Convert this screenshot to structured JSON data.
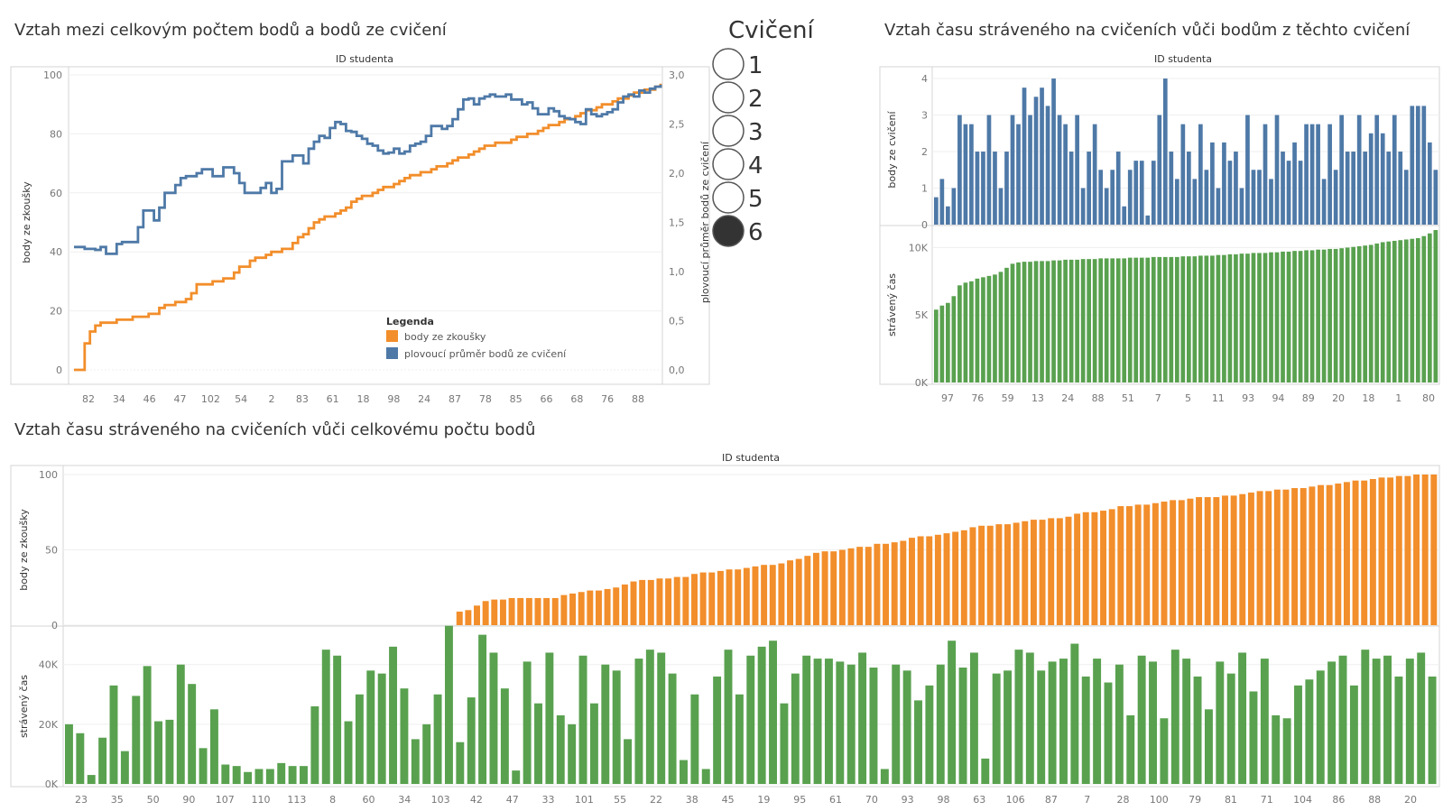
{
  "filter": {
    "title": "Cvičení",
    "options": [
      "1",
      "2",
      "3",
      "4",
      "5",
      "6"
    ],
    "selected": "6"
  },
  "colors": {
    "orange": "#f28e2b",
    "blue": "#4e79a7",
    "green": "#59a14f"
  },
  "chart_data": [
    {
      "type": "line",
      "title": "Vztah mezi celkovým počtem bodů a bodů ze cvičení",
      "header": "ID studenta",
      "ylabel": "body ze zkoušky",
      "y2label": "plovoucí průměr bodů ze cvičení",
      "ylim": [
        0,
        100
      ],
      "y2lim": [
        0,
        3.0
      ],
      "yticks": [
        "0",
        "20",
        "40",
        "60",
        "80",
        "100"
      ],
      "y2ticks": [
        "0,0",
        "0,5",
        "1,0",
        "1,5",
        "2,0",
        "2,5",
        "3,0"
      ],
      "xtick_labels": [
        "82",
        "34",
        "46",
        "47",
        "102",
        "54",
        "2",
        "83",
        "61",
        "18",
        "98",
        "24",
        "87",
        "78",
        "85",
        "66",
        "68",
        "76",
        "88"
      ],
      "legend": {
        "title": "Legenda",
        "entries": [
          "body ze zkoušky",
          "plovoucí průměr bodů ze cvičení"
        ],
        "position": "bottom-center"
      },
      "series": [
        {
          "name": "body ze zkoušky",
          "color": "#f28e2b",
          "axis": "left",
          "values": [
            0,
            0,
            9,
            13,
            15,
            16,
            16,
            16,
            17,
            17,
            17,
            18,
            18,
            18,
            19,
            19,
            21,
            22,
            22,
            23,
            23,
            24,
            26,
            29,
            29,
            29,
            30,
            30,
            31,
            31,
            33,
            35,
            35,
            37,
            38,
            38,
            39,
            40,
            40,
            41,
            41,
            43,
            45,
            46,
            48,
            50,
            51,
            52,
            52,
            53,
            54,
            55,
            57,
            58,
            59,
            59,
            60,
            61,
            62,
            62,
            63,
            64,
            65,
            66,
            66,
            67,
            67,
            68,
            69,
            69,
            70,
            71,
            72,
            72,
            73,
            74,
            75,
            76,
            76,
            77,
            77,
            77,
            78,
            79,
            79,
            80,
            80,
            81,
            82,
            83,
            83,
            84,
            85,
            85,
            86,
            87,
            88,
            88,
            89,
            90,
            90,
            91,
            92,
            92,
            93,
            94,
            94,
            95,
            95,
            96,
            97
          ]
        },
        {
          "name": "plovoucí průměr bodů ze cvičení",
          "color": "#4e79a7",
          "axis": "right",
          "values": [
            1.25,
            1.25,
            1.23,
            1.23,
            1.22,
            1.25,
            1.18,
            1.18,
            1.28,
            1.3,
            1.3,
            1.3,
            1.45,
            1.62,
            1.62,
            1.52,
            1.65,
            1.8,
            1.8,
            1.88,
            1.95,
            1.97,
            1.97,
            2.0,
            2.04,
            2.04,
            1.97,
            1.97,
            2.06,
            2.06,
            2.0,
            1.9,
            1.8,
            1.8,
            1.8,
            1.85,
            1.9,
            1.8,
            1.84,
            2.12,
            2.12,
            2.18,
            2.18,
            2.1,
            2.25,
            2.32,
            2.38,
            2.36,
            2.46,
            2.52,
            2.5,
            2.43,
            2.42,
            2.38,
            2.35,
            2.3,
            2.28,
            2.23,
            2.2,
            2.21,
            2.25,
            2.2,
            2.22,
            2.28,
            2.3,
            2.32,
            2.38,
            2.48,
            2.48,
            2.45,
            2.48,
            2.55,
            2.65,
            2.75,
            2.76,
            2.7,
            2.76,
            2.78,
            2.8,
            2.78,
            2.78,
            2.8,
            2.75,
            2.75,
            2.7,
            2.72,
            2.66,
            2.6,
            2.6,
            2.66,
            2.63,
            2.58,
            2.56,
            2.55,
            2.52,
            2.5,
            2.65,
            2.6,
            2.58,
            2.6,
            2.62,
            2.65,
            2.72,
            2.78,
            2.8,
            2.78,
            2.84,
            2.82,
            2.86,
            2.88,
            2.9
          ]
        }
      ]
    },
    {
      "type": "bar",
      "title": "Vztah času stráveného na cvičeních vůči bodům z těchto cvičení",
      "header": "ID studenta",
      "xtick_labels": [
        "97",
        "76",
        "59",
        "13",
        "24",
        "88",
        "51",
        "7",
        "5",
        "11",
        "93",
        "94",
        "89",
        "20",
        "18",
        "1",
        "80"
      ],
      "panels": [
        {
          "ylabel": "body ze cvičení",
          "ylim": [
            0,
            4.1
          ],
          "yticks": [
            "0",
            "1",
            "2",
            "3",
            "4"
          ],
          "color": "#4e79a7",
          "values": [
            0.75,
            1.25,
            0.5,
            1.0,
            3.0,
            2.75,
            2.75,
            2.0,
            2.0,
            3.0,
            2.0,
            1.0,
            2.0,
            3.0,
            2.75,
            3.75,
            3.0,
            3.5,
            3.75,
            3.25,
            4.0,
            3.0,
            2.75,
            2.0,
            3.0,
            1.0,
            2.0,
            2.75,
            1.5,
            1.0,
            1.5,
            2.0,
            0.5,
            1.5,
            1.75,
            1.75,
            0.25,
            1.75,
            3.0,
            4.0,
            2.0,
            1.25,
            2.75,
            2.0,
            1.25,
            2.75,
            1.5,
            2.25,
            1.0,
            2.25,
            1.75,
            2.0,
            1.0,
            3.0,
            1.5,
            1.5,
            2.75,
            1.25,
            3.0,
            2.0,
            1.75,
            2.25,
            1.75,
            2.75,
            2.75,
            2.75,
            1.25,
            2.75,
            1.5,
            3.0,
            2.0,
            2.0,
            3.0,
            2.0,
            2.5,
            3.0,
            2.5,
            2.0,
            3.0,
            2.0,
            1.5,
            3.25,
            3.25,
            3.25,
            2.25,
            1.5
          ]
        },
        {
          "ylabel": "strávený čas",
          "ylim": [
            0,
            11500
          ],
          "yticks": [
            "0K",
            "5K",
            "10K"
          ],
          "color": "#59a14f",
          "values": [
            5400,
            5700,
            5900,
            6400,
            7200,
            7400,
            7500,
            7700,
            7800,
            7900,
            8000,
            8200,
            8500,
            8800,
            8900,
            8950,
            8950,
            9000,
            9000,
            9000,
            9050,
            9050,
            9100,
            9100,
            9100,
            9150,
            9150,
            9150,
            9200,
            9200,
            9200,
            9200,
            9200,
            9250,
            9250,
            9250,
            9250,
            9300,
            9300,
            9300,
            9300,
            9300,
            9350,
            9350,
            9350,
            9400,
            9400,
            9400,
            9450,
            9450,
            9500,
            9500,
            9550,
            9550,
            9600,
            9600,
            9600,
            9650,
            9650,
            9700,
            9700,
            9750,
            9750,
            9800,
            9800,
            9850,
            9850,
            9900,
            9900,
            9950,
            10000,
            10050,
            10100,
            10150,
            10200,
            10300,
            10400,
            10450,
            10500,
            10550,
            10600,
            10650,
            10700,
            10850,
            11050,
            11300
          ]
        }
      ]
    },
    {
      "type": "bar",
      "title": "Vztah času stráveného na cvičeních vůči celkovému počtu bodů",
      "header": "ID studenta",
      "xtick_labels": [
        "23",
        "35",
        "50",
        "90",
        "107",
        "110",
        "113",
        "8",
        "60",
        "34",
        "103",
        "42",
        "47",
        "33",
        "101",
        "55",
        "22",
        "38",
        "45",
        "19",
        "95",
        "61",
        "70",
        "93",
        "98",
        "63",
        "106",
        "87",
        "7",
        "28",
        "100",
        "79",
        "81",
        "71",
        "104",
        "86",
        "88",
        "20"
      ],
      "panels": [
        {
          "ylabel": "body ze zkoušky",
          "ylim": [
            0,
            100
          ],
          "yticks": [
            "0",
            "50",
            "100"
          ],
          "color": "#f28e2b",
          "values": [
            0,
            0,
            0,
            0,
            0,
            0,
            0,
            0,
            0,
            0,
            0,
            0,
            0,
            0,
            0,
            0,
            0,
            0,
            0,
            0,
            0,
            0,
            0,
            0,
            0,
            0,
            0,
            0,
            0,
            0,
            0,
            0,
            0,
            0,
            0,
            0,
            0,
            0,
            0,
            0,
            0,
            0,
            0,
            0,
            0,
            9,
            10,
            13,
            16,
            17,
            17,
            18,
            18,
            18,
            18,
            18,
            18,
            20,
            21,
            22,
            23,
            23,
            24,
            25,
            27,
            29,
            30,
            30,
            31,
            31,
            32,
            32,
            34,
            35,
            35,
            36,
            37,
            37,
            38,
            39,
            40,
            40,
            41,
            43,
            44,
            46,
            48,
            49,
            49,
            50,
            51,
            52,
            52,
            54,
            54,
            55,
            56,
            58,
            59,
            59,
            60,
            61,
            62,
            63,
            65,
            66,
            66,
            67,
            67,
            68,
            69,
            70,
            70,
            71,
            71,
            72,
            74,
            75,
            75,
            76,
            77,
            79,
            79,
            80,
            80,
            81,
            82,
            83,
            83,
            84,
            85,
            85,
            85,
            86,
            86,
            87,
            88,
            89,
            89,
            90,
            90,
            91,
            91,
            92,
            93,
            93,
            94,
            95,
            96,
            96,
            97,
            98,
            98,
            99,
            99,
            100,
            100,
            100
          ]
        },
        {
          "ylabel": "strávený čas",
          "ylim": [
            0,
            52000
          ],
          "yticks": [
            "0K",
            "20K",
            "40K"
          ],
          "color": "#59a14f",
          "values": [
            20000,
            17000,
            3000,
            15500,
            33000,
            11000,
            29500,
            39500,
            21000,
            21500,
            40000,
            33500,
            12000,
            25000,
            6500,
            6000,
            4000,
            5000,
            5000,
            7000,
            6000,
            6000,
            26000,
            45000,
            43000,
            21000,
            30000,
            38000,
            37000,
            46000,
            32000,
            15000,
            20000,
            30000,
            53000,
            14000,
            29000,
            50000,
            44000,
            32000,
            4500,
            41000,
            27000,
            44000,
            23000,
            20000,
            43000,
            27000,
            40000,
            38000,
            15000,
            42000,
            45000,
            44000,
            37000,
            8000,
            30000,
            5000,
            36000,
            45000,
            30000,
            43000,
            46000,
            48000,
            27000,
            37000,
            43000,
            42000,
            42000,
            41000,
            40000,
            44000,
            39000,
            5000,
            40000,
            38000,
            28000,
            33000,
            40000,
            48000,
            39000,
            44000,
            8500,
            37000,
            38000,
            45000,
            44000,
            38000,
            41000,
            42000,
            47000,
            36000,
            42000,
            34000,
            40000,
            23000,
            43000,
            41000,
            22000,
            45000,
            42000,
            36000,
            25000,
            41000,
            37000,
            44000,
            31000,
            42000,
            23000,
            22000,
            33000,
            35000,
            38000,
            41000,
            43000,
            33000,
            45000,
            42000,
            43000,
            36000,
            42000,
            44000,
            36000
          ]
        }
      ]
    }
  ]
}
